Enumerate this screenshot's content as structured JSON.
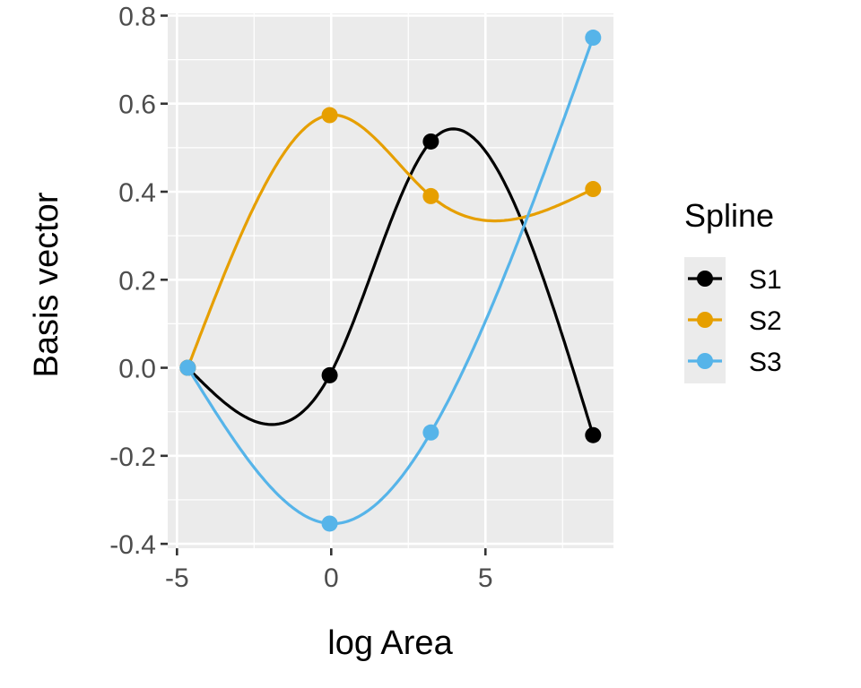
{
  "chart_data": {
    "type": "line",
    "title": "",
    "xlabel": "log Area",
    "ylabel": "Basis vector",
    "xlim": [
      -5.3,
      9.15
    ],
    "ylim": [
      -0.41,
      0.805
    ],
    "xticks": [
      -5,
      0,
      5
    ],
    "xtick_labels": [
      "-5",
      "0",
      "5"
    ],
    "yticks": [
      -0.4,
      -0.2,
      0.0,
      0.2,
      0.4,
      0.6,
      0.8
    ],
    "ytick_labels": [
      "-0.4",
      "-0.2",
      "0.0",
      "0.2",
      "0.4",
      "0.6",
      "0.8"
    ],
    "grid": true,
    "background": "#ebebeb",
    "legend": {
      "title": "Spline",
      "position": "right"
    },
    "x": [
      -4.65,
      -0.05,
      3.23,
      8.49
    ],
    "series": [
      {
        "name": "S1",
        "color": "#000000",
        "values": [
          0.0,
          -0.017,
          0.514,
          -0.153
        ]
      },
      {
        "name": "S2",
        "color": "#E69F00",
        "values": [
          0.0,
          0.574,
          0.39,
          0.406
        ]
      },
      {
        "name": "S3",
        "color": "#56B4E9",
        "values": [
          0.0,
          -0.354,
          -0.147,
          0.75
        ]
      }
    ]
  }
}
